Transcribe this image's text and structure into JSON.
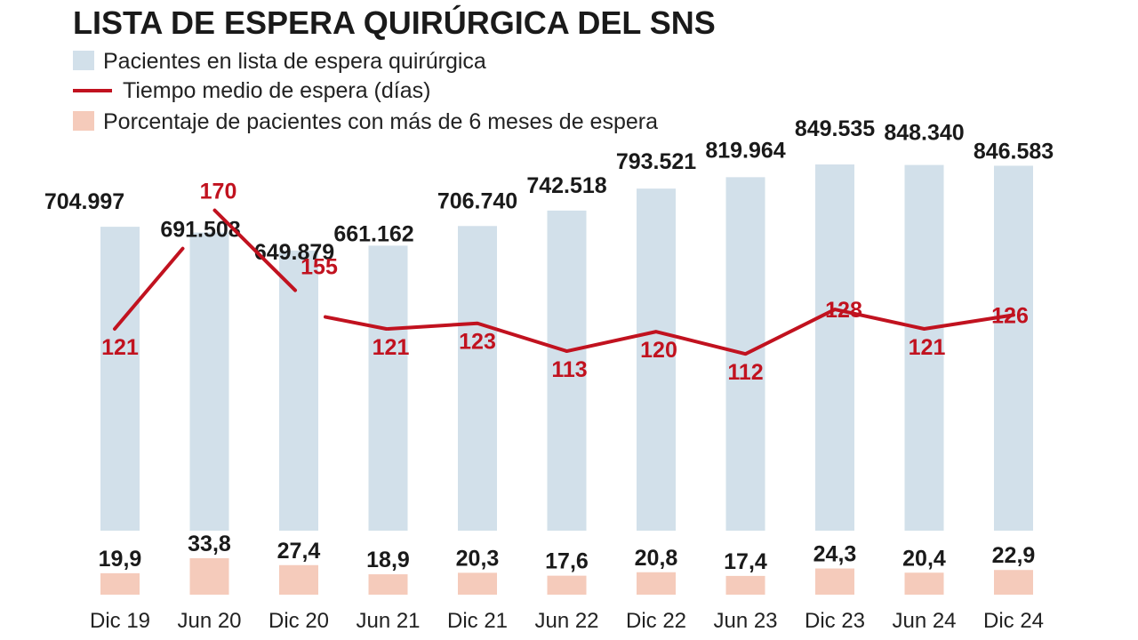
{
  "title": "LISTA DE ESPERA QUIRÚRGICA DEL SNS",
  "legend": [
    {
      "key": "patients",
      "label": "Pacientes en lista de espera quirúrgica",
      "marker": "square"
    },
    {
      "key": "wait",
      "label": "Tiempo medio de espera (días)",
      "marker": "line"
    },
    {
      "key": "pct",
      "label": "Porcentaje de pacientes con más de 6 meses de espera",
      "marker": "square"
    }
  ],
  "colors": {
    "patients": "#d2e0ea",
    "wait": "#c1121f",
    "pct": "#f5cbbb",
    "text": "#1a1a1a"
  },
  "chart_data": {
    "type": "bar",
    "categories": [
      "Dic 19",
      "Jun 20",
      "Dic 20",
      "Jun 21",
      "Dic 21",
      "Jun 22",
      "Dic 22",
      "Jun 23",
      "Dic 23",
      "Jun 24",
      "Dic 24"
    ],
    "series": [
      {
        "name": "Pacientes en lista de espera quirúrgica",
        "type": "bar",
        "values": [
          704997,
          691508,
          649879,
          661162,
          706740,
          742518,
          793521,
          819964,
          849535,
          848340,
          846583
        ],
        "labels": [
          "704.997",
          "691.508",
          "649.879",
          "661.162",
          "706.740",
          "742.518",
          "793.521",
          "819.964",
          "849.535",
          "848.340",
          "846.583"
        ]
      },
      {
        "name": "Tiempo medio de espera (días)",
        "type": "line",
        "values": [
          121,
          170,
          155,
          121,
          123,
          113,
          120,
          112,
          128,
          121,
          126
        ],
        "labels": [
          "121",
          "170",
          "155",
          "121",
          "123",
          "113",
          "120",
          "112",
          "128",
          "121",
          "126"
        ]
      },
      {
        "name": "Porcentaje de pacientes con más de 6 meses de espera",
        "type": "bar",
        "values": [
          19.9,
          33.8,
          27.4,
          18.9,
          20.3,
          17.6,
          20.8,
          17.4,
          24.3,
          20.4,
          22.9
        ],
        "labels": [
          "19,9",
          "33,8",
          "27,4",
          "18,9",
          "20,3",
          "17,6",
          "20,8",
          "17,4",
          "24,3",
          "20,4",
          "22,9"
        ]
      }
    ],
    "grid": false
  }
}
